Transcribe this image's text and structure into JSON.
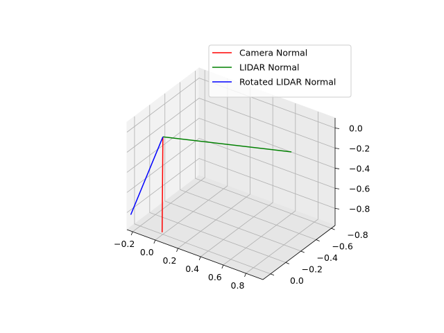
{
  "chart_data": {
    "type": "line",
    "projection": "3d",
    "title": "",
    "xlabel": "",
    "ylabel": "",
    "zlabel": "",
    "xlim": [
      -0.25,
      0.95
    ],
    "ylim": [
      -0.85,
      0.1
    ],
    "zlim": [
      -0.97,
      0.1
    ],
    "xticks": [
      -0.2,
      0.0,
      0.2,
      0.4,
      0.6,
      0.8
    ],
    "xtick_labels": [
      "−0.2",
      "0.0",
      "0.2",
      "0.4",
      "0.6",
      "0.8"
    ],
    "yticks": [
      0.0,
      -0.2,
      -0.4,
      -0.6,
      -0.8
    ],
    "ytick_labels": [
      "0.0",
      "−0.2",
      "−0.4",
      "−0.6",
      "−0.8"
    ],
    "zticks": [
      0.0,
      -0.2,
      -0.4,
      -0.6,
      -0.8
    ],
    "ztick_labels": [
      "0.0",
      "−0.2",
      "−0.4",
      "−0.6",
      "−0.8"
    ],
    "grid": true,
    "legend_position": "top-right",
    "series": [
      {
        "name": "Camera Normal",
        "color": "#ff0000",
        "points": [
          [
            0,
            0,
            0
          ],
          [
            -0.02,
            -0.02,
            -0.97
          ]
        ]
      },
      {
        "name": "LIDAR Normal",
        "color": "#008000",
        "points": [
          [
            0,
            0,
            0
          ],
          [
            0.92,
            -0.32,
            0.05
          ]
        ]
      },
      {
        "name": "Rotated LIDAR Normal",
        "color": "#0000ff",
        "points": [
          [
            0,
            0,
            0
          ],
          [
            -0.25,
            0.05,
            -0.85
          ]
        ]
      }
    ]
  }
}
